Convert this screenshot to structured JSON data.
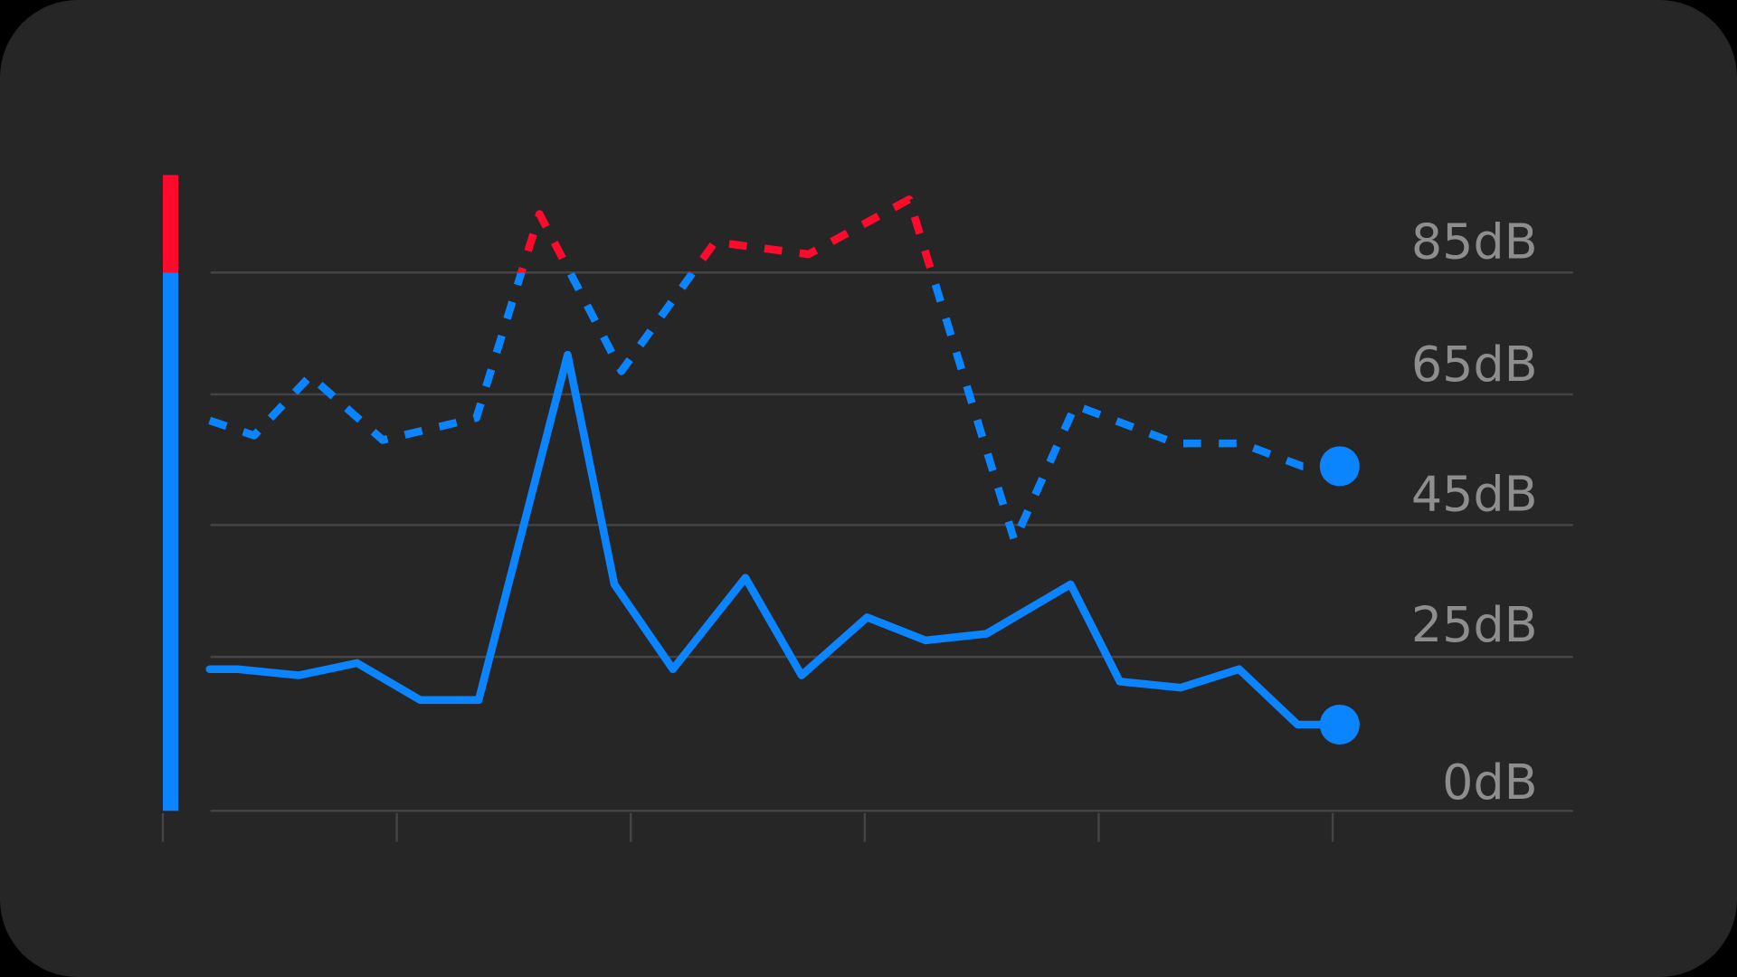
{
  "chart_data": {
    "type": "line",
    "title": "",
    "xlabel": "",
    "ylabel": "",
    "y_unit": "dB",
    "y_ticks": [
      0,
      25,
      45,
      65,
      85
    ],
    "y_tick_labels": [
      "0dB",
      "25dB",
      "45dB",
      "65dB",
      "85dB"
    ],
    "x_ticks": [
      0,
      1,
      2,
      3,
      4,
      5
    ],
    "threshold_db": 85,
    "grid": true,
    "colors": {
      "normal": "#0a84ff",
      "above_threshold": "#ff0a2c",
      "grid": "#444444",
      "label": "#8e8e8e",
      "background": "#262626"
    },
    "series": [
      {
        "style": "solid",
        "x": [
          0.2,
          0.32,
          0.58,
          0.83,
          1.1,
          1.35,
          1.73,
          1.93,
          2.18,
          2.49,
          2.73,
          3.01,
          3.26,
          3.52,
          3.88,
          4.09,
          4.35,
          4.6,
          4.85,
          5.03
        ],
        "values": [
          23,
          23,
          22,
          24,
          18,
          18,
          71.5,
          36,
          23,
          37,
          22,
          31,
          27.5,
          28.5,
          36,
          21,
          20,
          23,
          14,
          14
        ]
      },
      {
        "style": "dashed",
        "x": [
          0.2,
          0.39,
          0.63,
          0.94,
          1.34,
          1.61,
          1.96,
          2.36,
          2.76,
          3.19,
          3.64,
          3.9,
          4.33,
          4.61,
          4.87,
          5.03
        ],
        "values": [
          61,
          58.7,
          68,
          58,
          61.4,
          94.6,
          68.8,
          90,
          88,
          97,
          42.6,
          63.3,
          57.5,
          57.5,
          54,
          54
        ]
      }
    ]
  }
}
